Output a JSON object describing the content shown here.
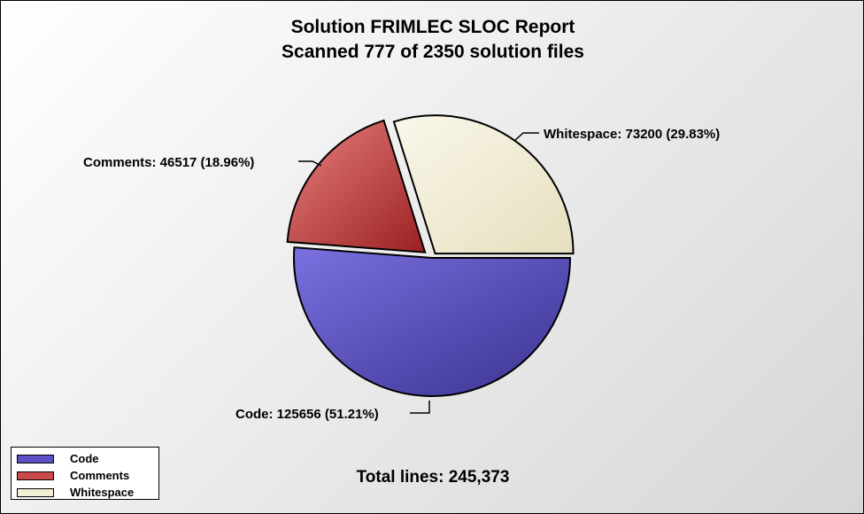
{
  "chart_data": {
    "type": "pie",
    "title": "Solution FRIMLEC SLOC Report",
    "subtitle": "Scanned 777 of 2350 solution files",
    "slices": [
      {
        "name": "Code",
        "value": 125656,
        "percent": 51.21,
        "color": "#5a4fc4",
        "label": "Code: 125656 (51.21%)"
      },
      {
        "name": "Comments",
        "value": 46517,
        "percent": 18.96,
        "color": "#c94a4a",
        "label": "Comments: 46517 (18.96%)"
      },
      {
        "name": "Whitespace",
        "value": 73200,
        "percent": 29.83,
        "color": "#f3eed6",
        "label": "Whitespace: 73200 (29.83%)"
      }
    ],
    "total_label": "Total lines: 245,373",
    "legend_placement": "bottom-left",
    "legend": [
      "Code",
      "Comments",
      "Whitespace"
    ]
  }
}
